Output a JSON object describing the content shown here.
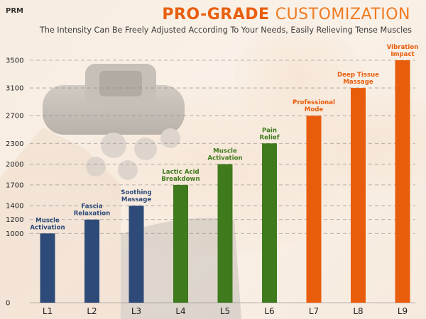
{
  "header": {
    "unit_label": "PRM",
    "title_strong": "PRO-GRADE",
    "title_light": "CUSTOMIZATION",
    "subtitle": "The Intensity Can Be Freely Adjusted According To Your Needs, Easily Relieving Tense Muscles"
  },
  "colors": {
    "navy": "#2d4a78",
    "green": "#3f7a1c",
    "orange": "#e85d0c",
    "grid": "#8a8a8a",
    "text": "#222222"
  },
  "chart_data": {
    "type": "bar",
    "title": "PRO-GRADE CUSTOMIZATION",
    "subtitle": "The Intensity Can Be Freely Adjusted According To Your Needs, Easily Relieving Tense Muscles",
    "ylabel": "PRM",
    "xlabel": "",
    "categories": [
      "L1",
      "L2",
      "L3",
      "L4",
      "L5",
      "L6",
      "L7",
      "L8",
      "L9"
    ],
    "values": [
      1000,
      1200,
      1400,
      1700,
      2000,
      2300,
      2700,
      3100,
      3500
    ],
    "bar_labels": [
      [
        "Muscle",
        "Activation"
      ],
      [
        "Fascia",
        "Relaxation"
      ],
      [
        "Soothing",
        "Massage"
      ],
      [
        "Lactic Acid",
        "Breakdown"
      ],
      [
        "Muscle",
        "Activation"
      ],
      [
        "Pain",
        "Relief"
      ],
      [
        "Professional",
        "Mode"
      ],
      [
        "Deep Tissue",
        "Massage"
      ],
      [
        "Vibration",
        "Impact"
      ]
    ],
    "bar_color_keys": [
      "navy",
      "navy",
      "navy",
      "green",
      "green",
      "green",
      "orange",
      "orange",
      "orange"
    ],
    "yticks": [
      0,
      1000,
      1200,
      1400,
      1700,
      2000,
      2300,
      2700,
      3100,
      3500
    ],
    "ytick_labels": [
      "0",
      "1000",
      "1200",
      "1400",
      "1700",
      "2000",
      "2300",
      "2700",
      "3100",
      "3500"
    ],
    "ylim": [
      0,
      3500
    ],
    "grid": true
  }
}
